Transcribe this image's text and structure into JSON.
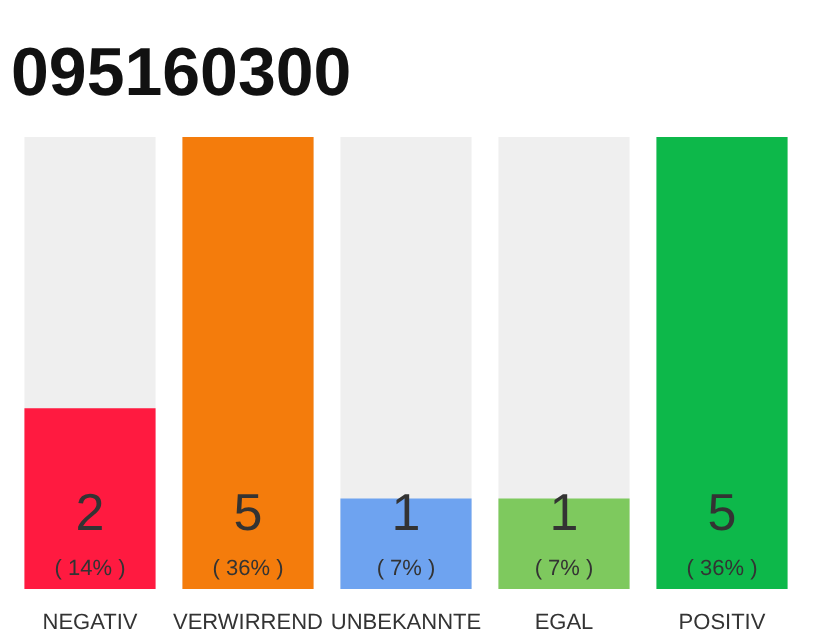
{
  "chart_data": {
    "type": "bar",
    "title": "095160300",
    "categories": [
      "NEGATIV",
      "VERWIRREND",
      "UNBEKANNTE",
      "EGAL",
      "POSITIV"
    ],
    "values": [
      2,
      5,
      1,
      1,
      5
    ],
    "colors": [
      "#ff1a40",
      "#f47c0c",
      "#6ea3f0",
      "#7ec95e",
      "#0db84a"
    ],
    "ylim": [
      0,
      5
    ],
    "tick_labels": "x",
    "data_labels": true,
    "grid": false,
    "annotations": [
      "( 14% )",
      "( 36% )",
      "( 7% )",
      "( 7% )",
      "( 36% )"
    ]
  }
}
